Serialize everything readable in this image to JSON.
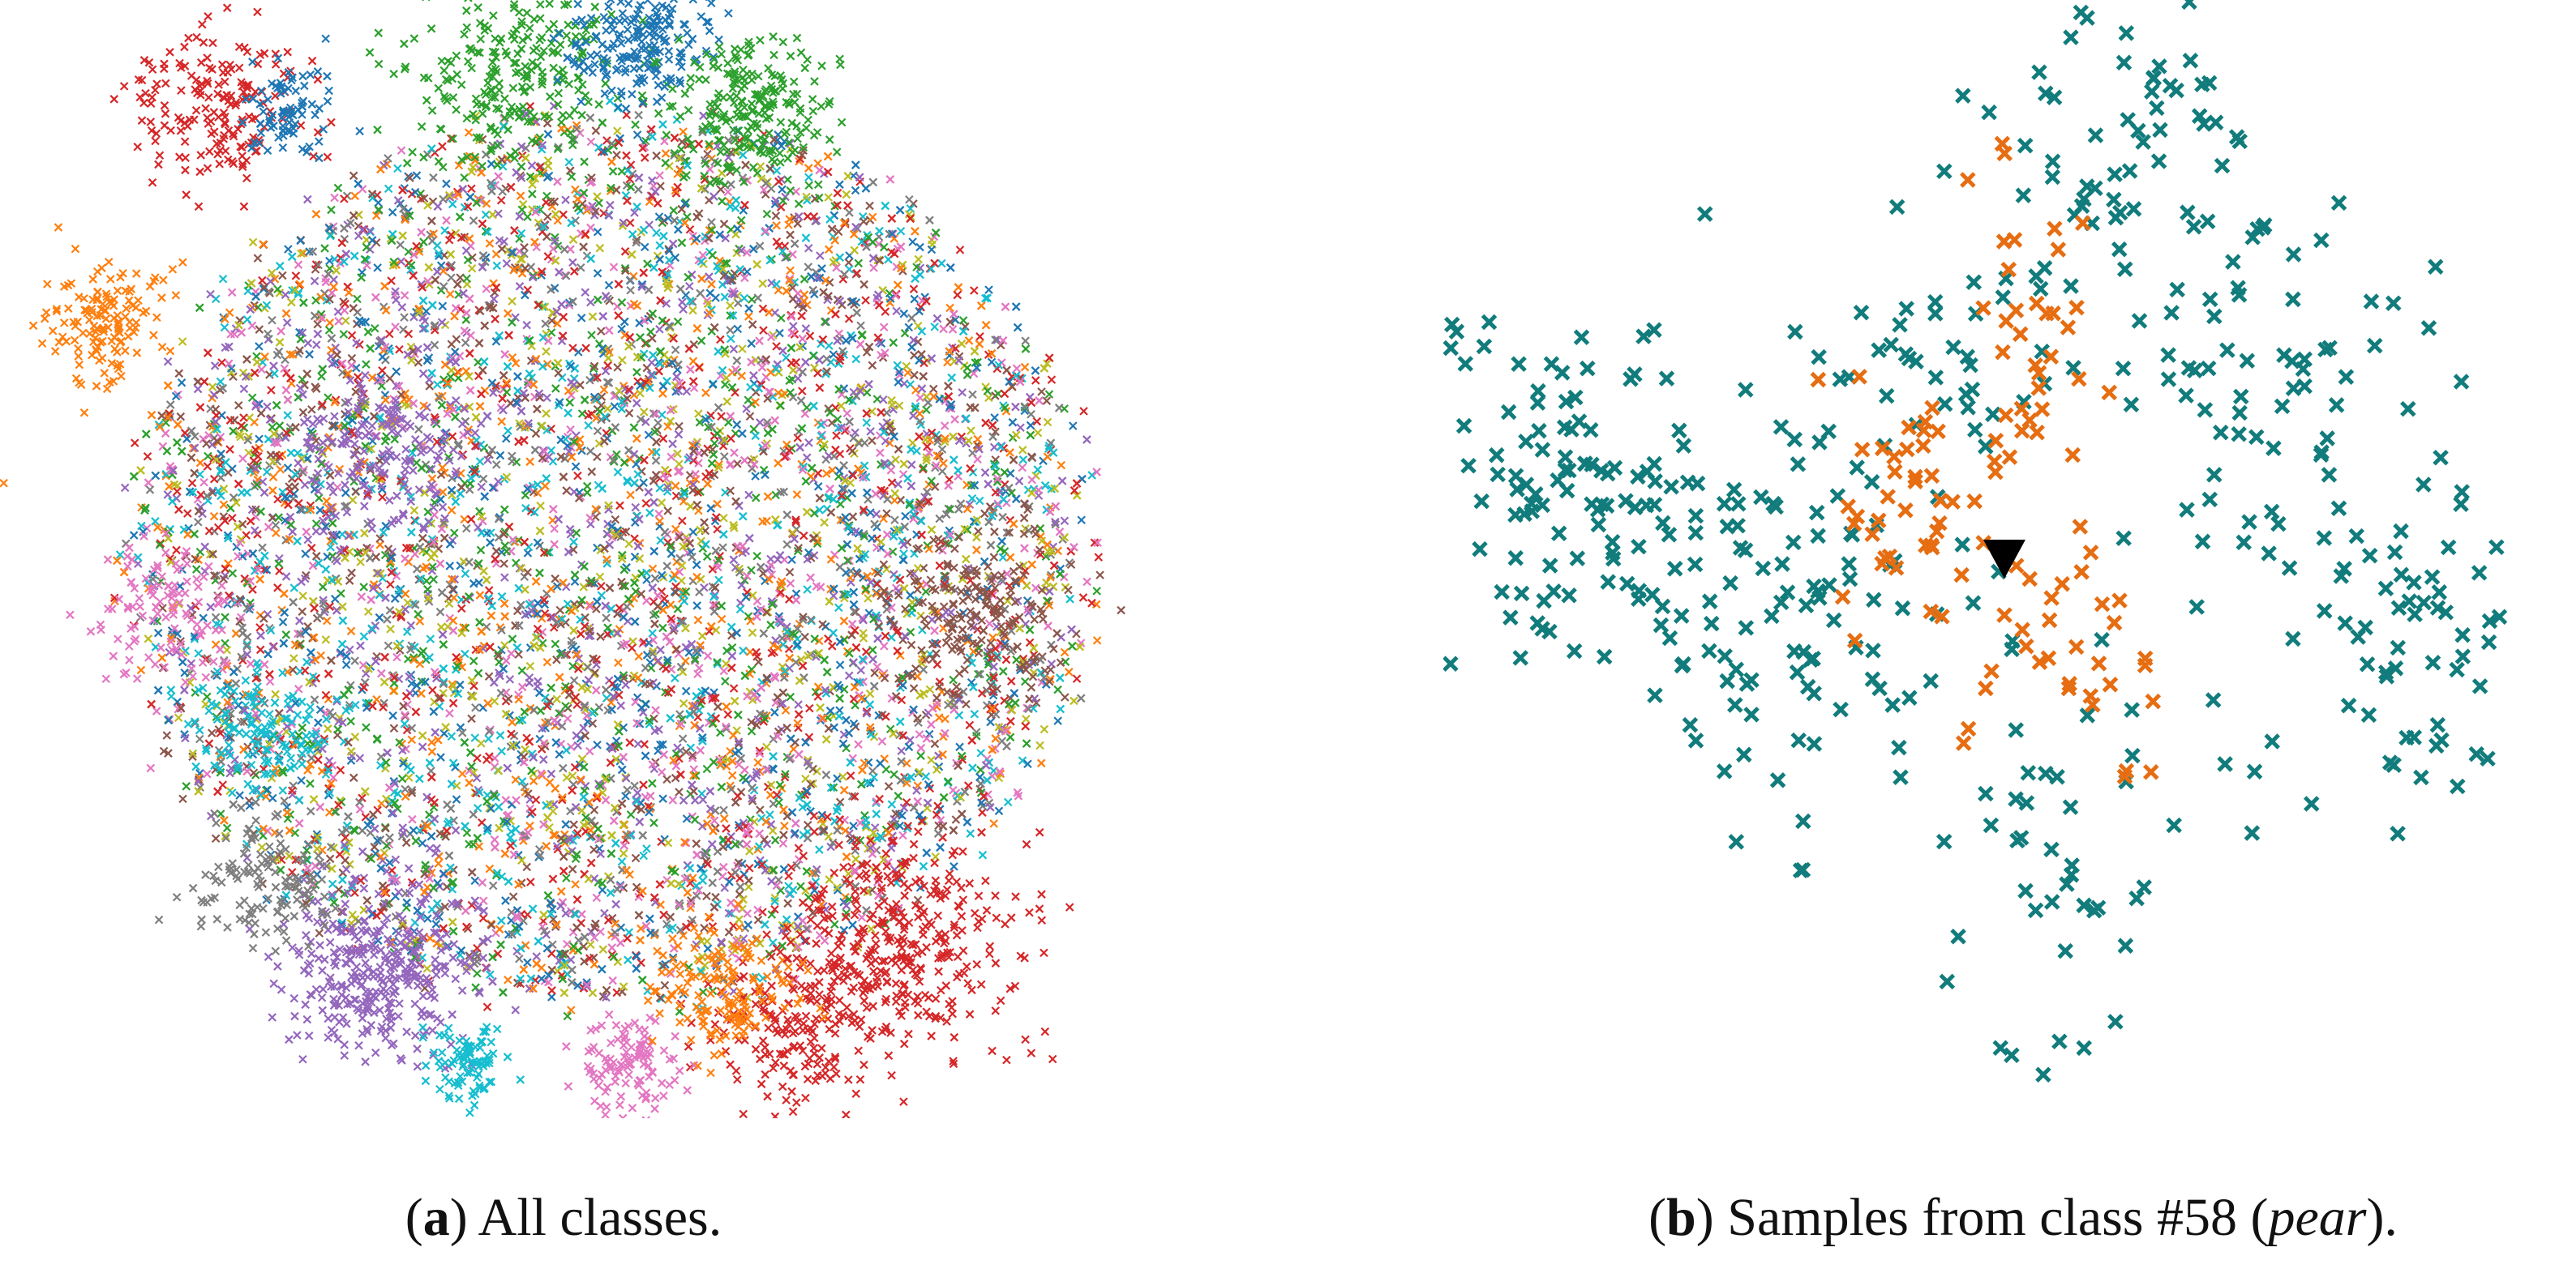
{
  "captions": {
    "a": {
      "open": "(",
      "letter": "a",
      "close": ")",
      "text": " All classes."
    },
    "b": {
      "open": "(",
      "letter": "b",
      "close": ")",
      "text": " Samples from class #58 (",
      "class_name": "pear",
      "end": ")."
    }
  },
  "chart_data": [
    {
      "type": "scatter",
      "panel": "a",
      "title": "",
      "xlabel": "",
      "ylabel": "",
      "axes_visible": false,
      "grid": false,
      "legend": "none",
      "x_range": [
        -50,
        50
      ],
      "y_range": [
        -50,
        50
      ],
      "marker": "x",
      "palette": [
        "#1f77b4",
        "#ff7f0e",
        "#2ca02c",
        "#d62728",
        "#9467bd",
        "#8c564b",
        "#e377c2",
        "#7f7f7f",
        "#bcbd22",
        "#17becf"
      ],
      "bulk": {
        "description_points": 9000,
        "center": [
          0,
          0
        ],
        "radius": 42
      },
      "clusters": [
        {
          "center": [
            -44,
            22
          ],
          "spread": 2.8,
          "color": "#ff7f0e",
          "count": 140
        },
        {
          "center": [
            -55,
            5
          ],
          "spread": 1.0,
          "color": "#ff7f0e",
          "count": 30
        },
        {
          "center": [
            -34,
            42
          ],
          "spread": 3.5,
          "color": "#d62728",
          "count": 180
        },
        {
          "center": [
            -28,
            42
          ],
          "spread": 2.5,
          "color": "#1f77b4",
          "count": 80
        },
        {
          "center": [
            -8,
            45
          ],
          "spread": 4.5,
          "color": "#2ca02c",
          "count": 260
        },
        {
          "center": [
            3,
            48
          ],
          "spread": 3.0,
          "color": "#1f77b4",
          "count": 200
        },
        {
          "center": [
            12,
            42
          ],
          "spread": 3.5,
          "color": "#2ca02c",
          "count": 220
        },
        {
          "center": [
            -20,
            -38
          ],
          "spread": 4.0,
          "color": "#9467bd",
          "count": 330
        },
        {
          "center": [
            25,
            -36
          ],
          "spread": 5.0,
          "color": "#d62728",
          "count": 360
        },
        {
          "center": [
            16,
            -44
          ],
          "spread": 3.5,
          "color": "#d62728",
          "count": 160
        },
        {
          "center": [
            -12,
            -47
          ],
          "spread": 1.8,
          "color": "#17becf",
          "count": 90
        },
        {
          "center": [
            2,
            -47
          ],
          "spread": 2.2,
          "color": "#e377c2",
          "count": 110
        },
        {
          "center": [
            10,
            -40
          ],
          "spread": 3.0,
          "color": "#ff7f0e",
          "count": 140
        },
        {
          "center": [
            -30,
            -16
          ],
          "spread": 3.0,
          "color": "#17becf",
          "count": 120
        },
        {
          "center": [
            -38,
            -5
          ],
          "spread": 3.0,
          "color": "#e377c2",
          "count": 110
        },
        {
          "center": [
            -30,
            -30
          ],
          "spread": 3.0,
          "color": "#7f7f7f",
          "count": 120
        },
        {
          "center": [
            32,
            -5
          ],
          "spread": 4.0,
          "color": "#8c564b",
          "count": 160
        },
        {
          "center": [
            -20,
            10
          ],
          "spread": 4.0,
          "color": "#9467bd",
          "count": 160
        }
      ]
    },
    {
      "type": "scatter",
      "panel": "b",
      "title": "",
      "xlabel": "",
      "ylabel": "",
      "axes_visible": false,
      "grid": false,
      "legend": "none",
      "x_range": [
        -50,
        50
      ],
      "y_range": [
        -50,
        50
      ],
      "marker": "x",
      "series": [
        {
          "color": "#127c7c",
          "count": 470,
          "regions": [
            {
              "center": [
                -38,
                6
              ],
              "spread": [
                7.5,
                10.5
              ],
              "count": 110
            },
            {
              "center": [
                -18,
                -5
              ],
              "spread": [
                8.0,
                9.0
              ],
              "count": 90
            },
            {
              "center": [
                -8,
                18
              ],
              "spread": [
                6.0,
                6.0
              ],
              "count": 40
            },
            {
              "center": [
                11,
                36
              ],
              "spread": [
                6.0,
                8.0
              ],
              "count": 60
            },
            {
              "center": [
                25,
                18
              ],
              "spread": [
                8.0,
                9.0
              ],
              "count": 70
            },
            {
              "center": [
                38,
                -9
              ],
              "spread": [
                4.5,
                9.0
              ],
              "count": 50
            },
            {
              "center": [
                3,
                -26
              ],
              "spread": [
                4.5,
                10.0
              ],
              "count": 35
            },
            {
              "center": [
                18,
                -16
              ],
              "spread": [
                7.0,
                6.0
              ],
              "count": 15
            }
          ]
        },
        {
          "color": "#e66d12",
          "count": 110,
          "regions": [
            {
              "center": [
                -9,
                6
              ],
              "spread": [
                4.0,
                5.5
              ],
              "count": 40
            },
            {
              "center": [
                1,
                20
              ],
              "spread": [
                2.5,
                8.0
              ],
              "count": 35
            },
            {
              "center": [
                4,
                -10
              ],
              "spread": [
                5.0,
                7.0
              ],
              "count": 35
            }
          ]
        }
      ],
      "query_point": {
        "marker": "triangle-down",
        "color": "#000000",
        "x": -0.3,
        "y": 0.0
      }
    }
  ]
}
